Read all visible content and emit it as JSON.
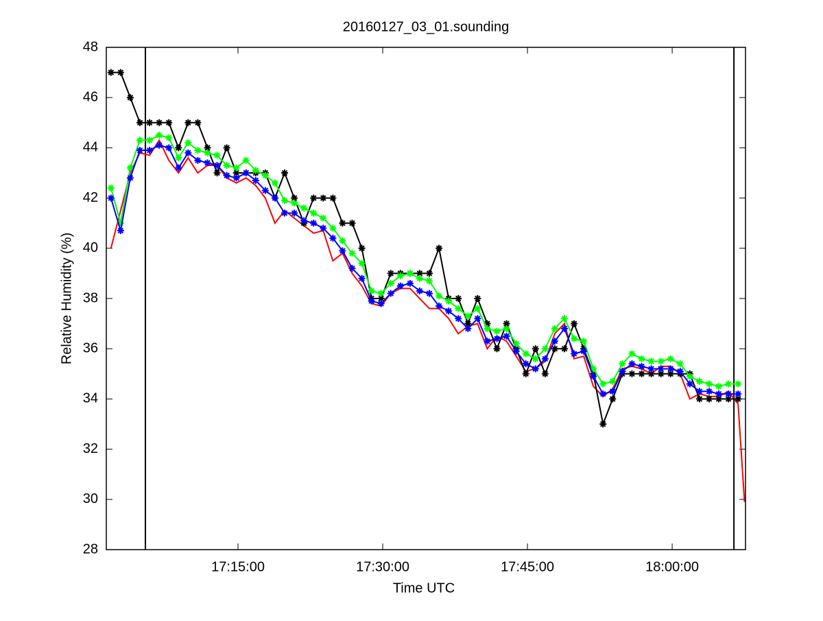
{
  "chart_data": {
    "type": "line",
    "title": "20160127_03_01.sounding",
    "x_label": "Time UTC",
    "y_label": "Relative Humidity (%)",
    "x": [
      "17:01:50",
      "17:02:50",
      "17:03:50",
      "17:04:50",
      "17:05:50",
      "17:06:50",
      "17:07:50",
      "17:08:50",
      "17:09:50",
      "17:10:50",
      "17:11:50",
      "17:12:50",
      "17:13:50",
      "17:14:50",
      "17:15:50",
      "17:16:50",
      "17:17:50",
      "17:18:50",
      "17:19:50",
      "17:20:50",
      "17:21:50",
      "17:22:50",
      "17:23:50",
      "17:24:50",
      "17:25:50",
      "17:26:50",
      "17:27:50",
      "17:28:50",
      "17:29:50",
      "17:30:50",
      "17:31:50",
      "17:32:50",
      "17:33:50",
      "17:34:50",
      "17:35:50",
      "17:36:50",
      "17:37:50",
      "17:38:50",
      "17:39:50",
      "17:40:50",
      "17:41:50",
      "17:42:50",
      "17:43:50",
      "17:44:50",
      "17:45:50",
      "17:46:50",
      "17:47:50",
      "17:48:50",
      "17:49:50",
      "17:50:50",
      "17:51:50",
      "17:52:50",
      "17:53:50",
      "17:54:50",
      "17:55:50",
      "17:56:50",
      "17:57:50",
      "17:58:50",
      "17:59:50",
      "18:00:50",
      "18:01:50",
      "18:02:50",
      "18:03:50",
      "18:04:50",
      "18:05:50",
      "18:06:50",
      "18:07:30"
    ],
    "series": [
      {
        "color": "#ff0000",
        "marker": false,
        "values": [
          40.0,
          41.5,
          43.0,
          43.8,
          43.7,
          44.3,
          43.5,
          43.0,
          43.6,
          43.0,
          43.3,
          43.3,
          42.8,
          42.6,
          42.8,
          42.5,
          42.0,
          41.0,
          41.5,
          41.2,
          40.9,
          40.6,
          40.7,
          39.5,
          39.8,
          39.0,
          38.5,
          37.8,
          37.7,
          38.2,
          38.4,
          38.4,
          38.0,
          37.6,
          37.6,
          37.2,
          36.6,
          36.9,
          37.0,
          36.0,
          36.5,
          36.3,
          35.7,
          35.1,
          35.2,
          35.5,
          36.6,
          37.0,
          35.6,
          35.7,
          34.5,
          34.1,
          34.4,
          35.2,
          35.3,
          35.2,
          35.0,
          35.3,
          35.3,
          35.0,
          34.0,
          34.2,
          34.1,
          34.1,
          34.3,
          33.8,
          29.9
        ]
      },
      {
        "color": "#000000",
        "marker": true,
        "values": [
          47,
          47,
          46,
          45,
          45,
          45,
          45,
          44,
          45,
          45,
          44,
          43,
          44,
          43,
          43,
          43,
          43,
          42,
          43,
          42,
          41,
          42,
          42,
          42,
          41,
          41,
          40,
          38,
          38,
          39,
          39,
          39,
          39,
          39,
          40,
          38,
          38,
          37,
          38,
          37,
          36,
          37,
          36,
          35,
          36,
          35,
          36,
          36,
          37,
          36,
          35,
          33,
          34,
          35,
          35,
          35,
          35,
          35,
          35,
          35,
          35,
          34,
          34,
          34,
          34,
          34,
          null
        ]
      },
      {
        "color": "#00ff00",
        "marker": true,
        "values": [
          42.4,
          41.0,
          43.2,
          44.3,
          44.3,
          44.5,
          44.4,
          43.6,
          44.2,
          43.9,
          43.8,
          43.7,
          43.3,
          43.2,
          43.5,
          43.1,
          42.9,
          42.6,
          41.9,
          41.8,
          41.6,
          41.4,
          41.2,
          40.8,
          40.3,
          39.8,
          39.4,
          38.3,
          38.2,
          38.6,
          38.9,
          39.0,
          38.8,
          38.7,
          38.1,
          37.9,
          37.6,
          37.3,
          37.6,
          36.8,
          36.7,
          36.8,
          36.2,
          35.8,
          35.6,
          36.0,
          36.8,
          37.2,
          36.4,
          36.3,
          35.2,
          34.6,
          34.7,
          35.4,
          35.8,
          35.6,
          35.5,
          35.5,
          35.6,
          35.4,
          34.9,
          34.7,
          34.6,
          34.5,
          34.6,
          34.6,
          null
        ]
      },
      {
        "color": "#0000ff",
        "marker": true,
        "values": [
          42.0,
          40.7,
          42.8,
          43.9,
          43.9,
          44.1,
          44.0,
          43.2,
          43.8,
          43.5,
          43.4,
          43.3,
          42.9,
          42.8,
          43.0,
          42.7,
          42.3,
          42.0,
          41.4,
          41.4,
          41.1,
          41.0,
          40.8,
          40.4,
          39.9,
          39.2,
          38.8,
          37.9,
          37.8,
          38.2,
          38.5,
          38.6,
          38.3,
          38.2,
          37.7,
          37.5,
          37.2,
          36.8,
          37.2,
          36.3,
          36.4,
          36.5,
          35.9,
          35.4,
          35.2,
          35.6,
          36.3,
          36.8,
          35.8,
          35.9,
          34.9,
          34.2,
          34.3,
          35.1,
          35.4,
          35.3,
          35.2,
          35.2,
          35.2,
          35.1,
          34.6,
          34.3,
          34.3,
          34.2,
          34.2,
          34.2,
          null
        ]
      }
    ],
    "vlines": [
      "17:05:24",
      "18:06:24"
    ],
    "xlim": [
      "17:01:21",
      "18:07:36"
    ],
    "xticks": [
      "17:15:00",
      "17:30:00",
      "17:45:00",
      "18:00:00"
    ],
    "ylim": [
      28,
      48
    ],
    "yticks": [
      28,
      30,
      32,
      34,
      36,
      38,
      40,
      42,
      44,
      46,
      48
    ],
    "grid": false
  }
}
